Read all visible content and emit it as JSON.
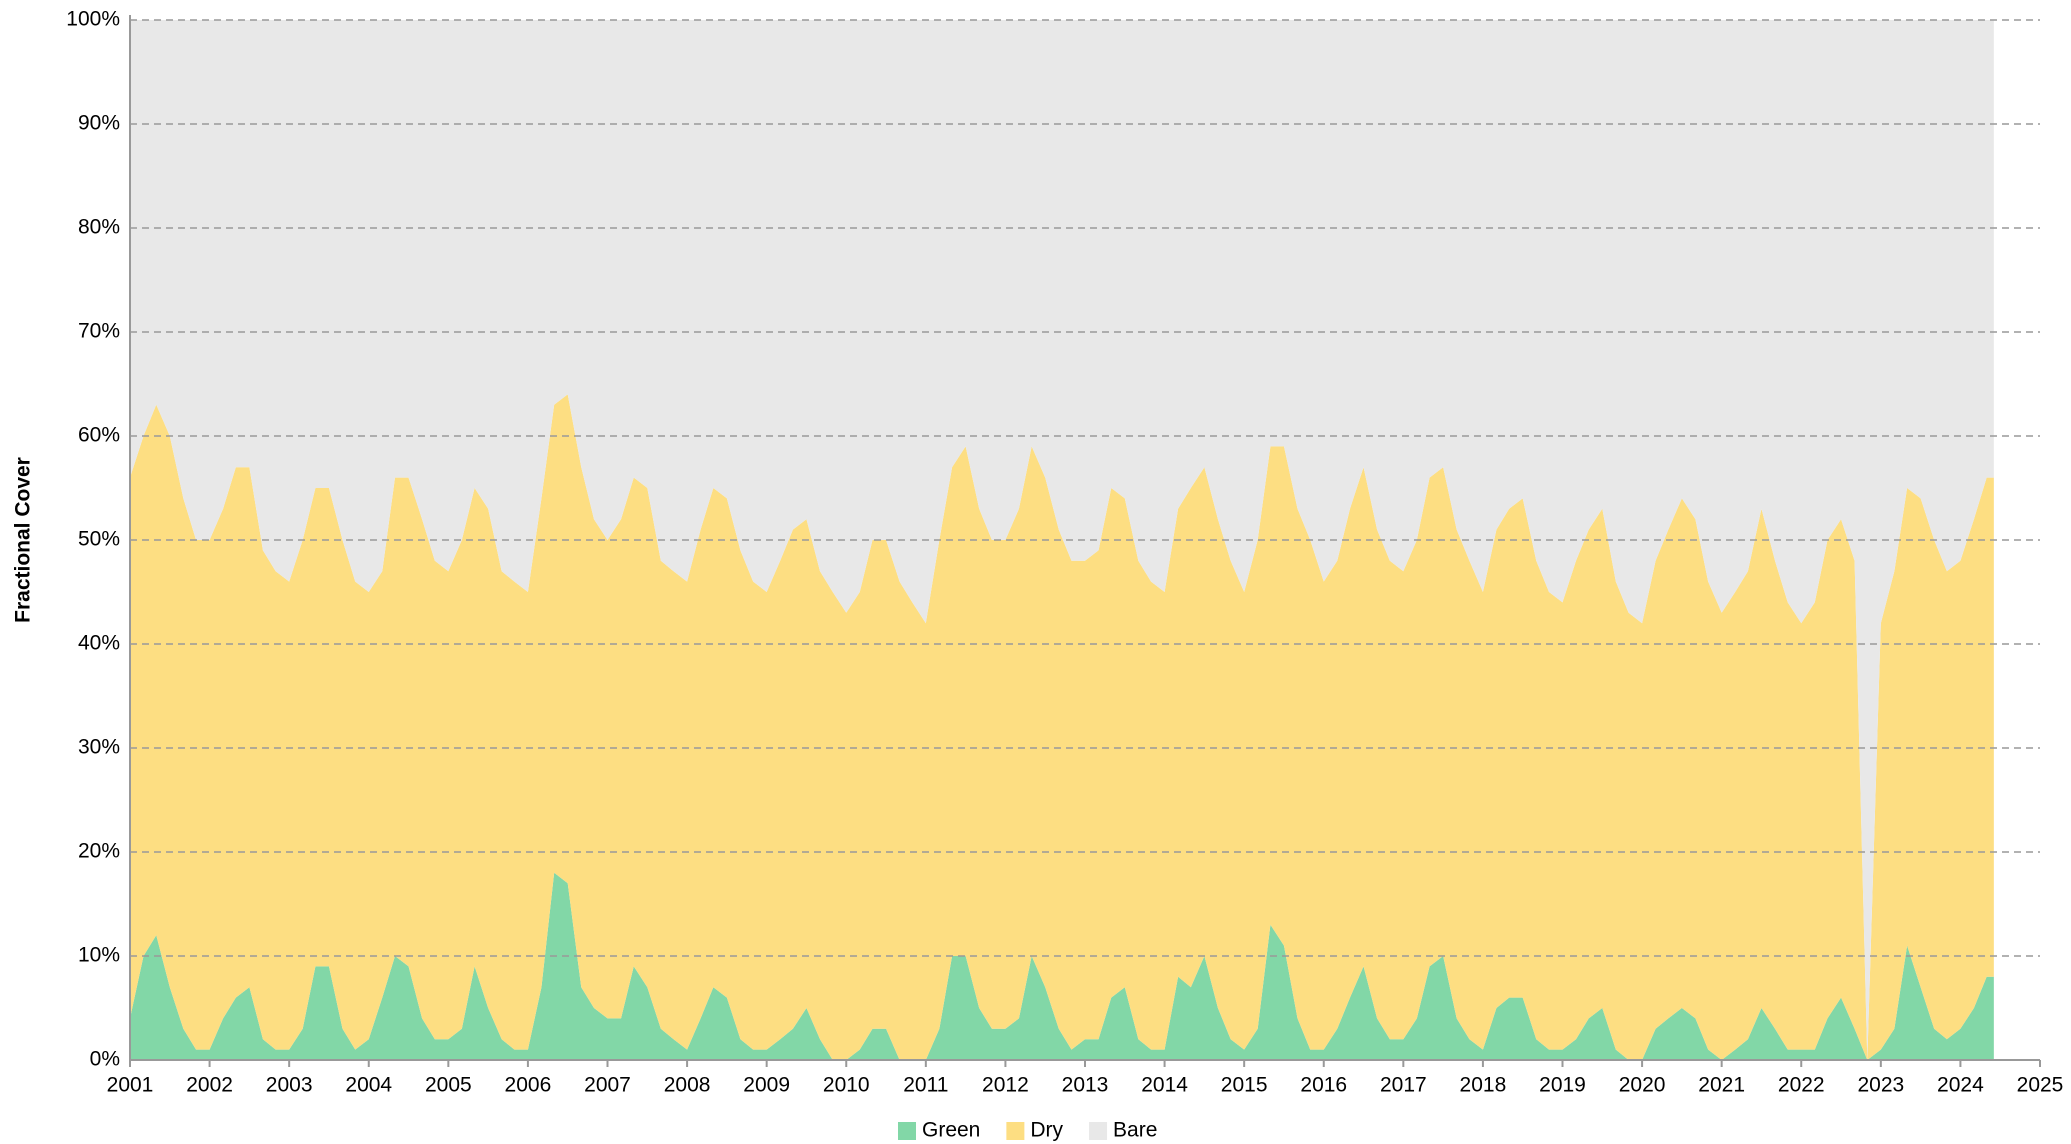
{
  "chart_data": {
    "type": "stacked_area",
    "y_label": "Fractional Cover",
    "x": [
      2001,
      2001.17,
      2001.33,
      2001.5,
      2001.67,
      2001.83,
      2002,
      2002.17,
      2002.33,
      2002.5,
      2002.67,
      2002.83,
      2003,
      2003.17,
      2003.33,
      2003.5,
      2003.67,
      2003.83,
      2004,
      2004.17,
      2004.33,
      2004.5,
      2004.67,
      2004.83,
      2005,
      2005.17,
      2005.33,
      2005.5,
      2005.67,
      2005.83,
      2006,
      2006.17,
      2006.33,
      2006.5,
      2006.67,
      2006.83,
      2007,
      2007.17,
      2007.33,
      2007.5,
      2007.67,
      2007.83,
      2008,
      2008.17,
      2008.33,
      2008.5,
      2008.67,
      2008.83,
      2009,
      2009.17,
      2009.33,
      2009.5,
      2009.67,
      2009.83,
      2010,
      2010.17,
      2010.33,
      2010.5,
      2010.67,
      2010.83,
      2011,
      2011.17,
      2011.33,
      2011.5,
      2011.67,
      2011.83,
      2012,
      2012.17,
      2012.33,
      2012.5,
      2012.67,
      2012.83,
      2013,
      2013.17,
      2013.33,
      2013.5,
      2013.67,
      2013.83,
      2014,
      2014.17,
      2014.33,
      2014.5,
      2014.67,
      2014.83,
      2015,
      2015.17,
      2015.33,
      2015.5,
      2015.67,
      2015.83,
      2016,
      2016.17,
      2016.33,
      2016.5,
      2016.67,
      2016.83,
      2017,
      2017.17,
      2017.33,
      2017.5,
      2017.67,
      2017.83,
      2018,
      2018.17,
      2018.33,
      2018.5,
      2018.67,
      2018.83,
      2019,
      2019.17,
      2019.33,
      2019.5,
      2019.67,
      2019.83,
      2020,
      2020.17,
      2020.33,
      2020.5,
      2020.67,
      2020.83,
      2021,
      2021.17,
      2021.33,
      2021.5,
      2021.67,
      2021.83,
      2022,
      2022.17,
      2022.33,
      2022.5,
      2022.67,
      2022.83,
      2023,
      2023.17,
      2023.33,
      2023.5,
      2023.67,
      2023.83,
      2024,
      2024.17,
      2024.33,
      2024.42
    ],
    "series": [
      {
        "name": "Green",
        "color": "#82d7a7",
        "values": [
          4,
          10,
          12,
          7,
          3,
          1,
          1,
          4,
          6,
          7,
          2,
          1,
          1,
          3,
          9,
          9,
          3,
          1,
          2,
          6,
          10,
          9,
          4,
          2,
          2,
          3,
          9,
          5,
          2,
          1,
          1,
          7,
          18,
          17,
          7,
          5,
          4,
          4,
          9,
          7,
          3,
          2,
          1,
          4,
          7,
          6,
          2,
          1,
          1,
          2,
          3,
          5,
          2,
          0,
          0,
          1,
          3,
          3,
          0,
          0,
          0,
          3,
          10,
          10,
          5,
          3,
          3,
          4,
          10,
          7,
          3,
          1,
          2,
          2,
          6,
          7,
          2,
          1,
          1,
          8,
          7,
          10,
          5,
          2,
          1,
          3,
          13,
          11,
          4,
          1,
          1,
          3,
          6,
          9,
          4,
          2,
          2,
          4,
          9,
          10,
          4,
          2,
          1,
          5,
          6,
          6,
          2,
          1,
          1,
          2,
          4,
          5,
          1,
          0,
          0,
          3,
          4,
          5,
          4,
          1,
          0,
          1,
          2,
          5,
          3,
          1,
          1,
          1,
          4,
          6,
          3,
          0,
          1,
          3,
          11,
          7,
          3,
          2,
          3,
          5,
          8,
          8
        ]
      },
      {
        "name": "Dry",
        "color": "#fdde82",
        "values": [
          52,
          50,
          51,
          53,
          51,
          49,
          49,
          49,
          51,
          50,
          47,
          46,
          45,
          47,
          46,
          46,
          47,
          45,
          43,
          41,
          46,
          47,
          48,
          46,
          45,
          47,
          46,
          48,
          45,
          45,
          44,
          47,
          45,
          47,
          50,
          47,
          46,
          48,
          47,
          48,
          45,
          45,
          45,
          47,
          48,
          48,
          47,
          45,
          44,
          46,
          48,
          47,
          45,
          45,
          43,
          44,
          47,
          47,
          46,
          44,
          42,
          47,
          47,
          49,
          48,
          47,
          47,
          49,
          49,
          49,
          48,
          47,
          46,
          47,
          49,
          47,
          46,
          45,
          44,
          45,
          48,
          47,
          47,
          46,
          44,
          47,
          46,
          48,
          49,
          49,
          45,
          45,
          47,
          48,
          47,
          46,
          45,
          46,
          47,
          47,
          47,
          46,
          44,
          46,
          47,
          48,
          46,
          44,
          43,
          46,
          47,
          48,
          45,
          43,
          42,
          45,
          47,
          49,
          48,
          45,
          43,
          44,
          45,
          48,
          45,
          43,
          41,
          43,
          46,
          46,
          45,
          0,
          41,
          44,
          44,
          47,
          47,
          45,
          45,
          47,
          48,
          48
        ]
      },
      {
        "name": "Bare",
        "color": "#e8e8e8",
        "values": [
          44,
          40,
          37,
          40,
          46,
          50,
          50,
          47,
          43,
          43,
          51,
          53,
          54,
          50,
          45,
          45,
          50,
          54,
          55,
          53,
          44,
          44,
          48,
          52,
          53,
          50,
          45,
          47,
          53,
          54,
          55,
          46,
          37,
          36,
          43,
          48,
          50,
          48,
          44,
          45,
          52,
          53,
          54,
          49,
          45,
          46,
          51,
          54,
          55,
          52,
          49,
          48,
          53,
          55,
          57,
          55,
          50,
          50,
          54,
          56,
          58,
          50,
          43,
          41,
          47,
          50,
          50,
          47,
          41,
          44,
          49,
          52,
          52,
          51,
          45,
          46,
          52,
          54,
          55,
          47,
          45,
          43,
          48,
          52,
          55,
          50,
          41,
          41,
          47,
          50,
          54,
          52,
          47,
          43,
          49,
          52,
          53,
          50,
          44,
          43,
          49,
          52,
          55,
          49,
          47,
          46,
          52,
          55,
          56,
          52,
          49,
          47,
          54,
          57,
          58,
          52,
          49,
          46,
          48,
          54,
          57,
          55,
          53,
          47,
          52,
          56,
          58,
          56,
          50,
          48,
          52,
          100,
          58,
          53,
          45,
          46,
          50,
          53,
          52,
          48,
          44,
          44
        ]
      }
    ],
    "xlim": [
      2001,
      2025
    ],
    "xticks": [
      2001,
      2002,
      2003,
      2004,
      2005,
      2006,
      2007,
      2008,
      2009,
      2010,
      2011,
      2012,
      2013,
      2014,
      2015,
      2016,
      2017,
      2018,
      2019,
      2020,
      2021,
      2022,
      2023,
      2024,
      2025
    ],
    "ylim": [
      0,
      100
    ],
    "yticks": [
      {
        "value": 0,
        "label": "0%"
      },
      {
        "value": 10,
        "label": "10%"
      },
      {
        "value": 20,
        "label": "20%"
      },
      {
        "value": 30,
        "label": "30%"
      },
      {
        "value": 40,
        "label": "40%"
      },
      {
        "value": 50,
        "label": "50%"
      },
      {
        "value": 60,
        "label": "60%"
      },
      {
        "value": 70,
        "label": "70%"
      },
      {
        "value": 80,
        "label": "80%"
      },
      {
        "value": 90,
        "label": "90%"
      },
      {
        "value": 100,
        "label": "100%"
      }
    ],
    "grid": true,
    "legend": "bottom"
  }
}
